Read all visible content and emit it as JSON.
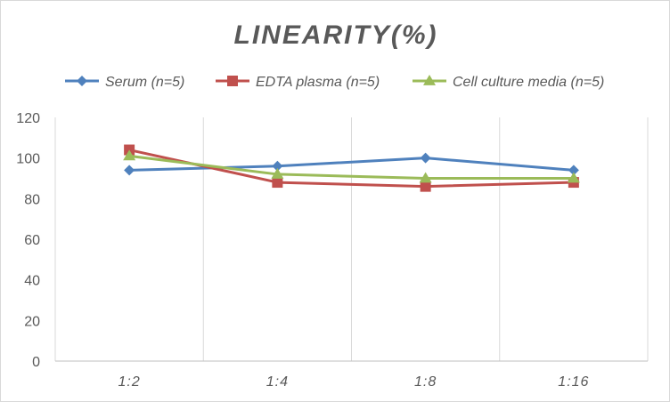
{
  "chart_data": {
    "type": "line",
    "title": "LINEARITY(%)",
    "categories": [
      "1:2",
      "1:4",
      "1:8",
      "1:16"
    ],
    "series": [
      {
        "name": "Serum (n=5)",
        "values": [
          94,
          96,
          100,
          94
        ],
        "color": "#4f81bd",
        "marker": "diamond"
      },
      {
        "name": "EDTA plasma (n=5)",
        "values": [
          104,
          88,
          86,
          88
        ],
        "color": "#c0504d",
        "marker": "square"
      },
      {
        "name": "Cell culture media (n=5)",
        "values": [
          101,
          92,
          90,
          90
        ],
        "color": "#9bbb59",
        "marker": "triangle"
      }
    ],
    "ylim": [
      0,
      120
    ],
    "yticks": [
      0,
      20,
      40,
      60,
      80,
      100,
      120
    ],
    "xlabel": "",
    "ylabel": "",
    "grid": {
      "vertical": true,
      "horizontal": false
    },
    "legend_position": "top",
    "colors": {
      "gridline": "#d9d9d9",
      "axis": "#bfbfbf",
      "text": "#595959"
    }
  }
}
